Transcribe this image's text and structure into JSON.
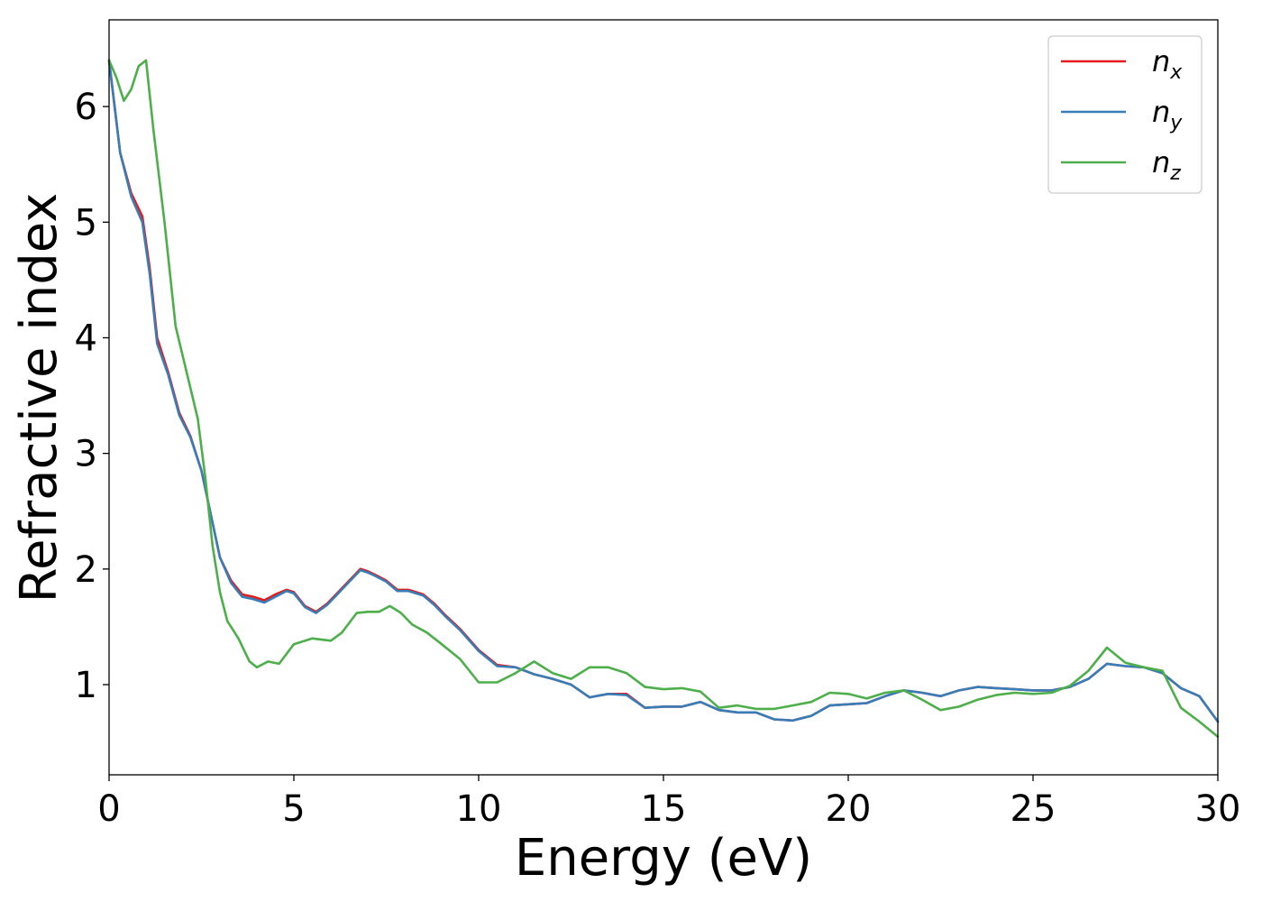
{
  "chart_data": {
    "type": "line",
    "xlabel": "Energy (eV)",
    "ylabel": "Refractive index",
    "xlim": [
      0,
      30
    ],
    "ylim": [
      0.22,
      6.75
    ],
    "xticks": [
      0,
      5,
      10,
      15,
      20,
      25,
      30
    ],
    "xtick_labels": [
      "0",
      "5",
      "10",
      "15",
      "20",
      "25",
      "30"
    ],
    "yticks": [
      1,
      2,
      3,
      4,
      5,
      6
    ],
    "ytick_labels": [
      "1",
      "2",
      "3",
      "4",
      "5",
      "6"
    ],
    "grid": false,
    "legend_position": "top-right",
    "series": [
      {
        "name": "n_x",
        "legend_base": "n",
        "legend_sub": "x",
        "color": "#e41a1c",
        "x": [
          0,
          0.3,
          0.6,
          0.9,
          1.1,
          1.3,
          1.6,
          1.9,
          2.2,
          2.5,
          2.8,
          3.0,
          3.3,
          3.6,
          3.9,
          4.2,
          4.5,
          4.8,
          5.0,
          5.3,
          5.6,
          5.9,
          6.2,
          6.5,
          6.8,
          7.0,
          7.2,
          7.5,
          7.8,
          8.1,
          8.5,
          8.8,
          9.1,
          9.5,
          10.0,
          10.5,
          11.0,
          11.5,
          12.0,
          12.5,
          13.0,
          13.5,
          14.0,
          14.5,
          15.0,
          15.5,
          16.0,
          16.5,
          17.0,
          17.5,
          18.0,
          18.5,
          19.0,
          19.5,
          20.0,
          20.5,
          21.0,
          21.5,
          22.0,
          22.5,
          23.0,
          23.5,
          24.0,
          24.5,
          25.0,
          25.5,
          26.0,
          26.5,
          27.0,
          27.5,
          28.0,
          28.5,
          29.0,
          29.5,
          30.0
        ],
        "y": [
          6.4,
          5.6,
          5.25,
          5.05,
          4.6,
          4.0,
          3.7,
          3.35,
          3.15,
          2.85,
          2.4,
          2.1,
          1.9,
          1.78,
          1.76,
          1.73,
          1.78,
          1.82,
          1.8,
          1.68,
          1.63,
          1.7,
          1.8,
          1.9,
          2.0,
          1.98,
          1.95,
          1.9,
          1.82,
          1.82,
          1.78,
          1.7,
          1.6,
          1.48,
          1.3,
          1.17,
          1.15,
          1.09,
          1.05,
          1.0,
          0.89,
          0.92,
          0.92,
          0.8,
          0.81,
          0.81,
          0.85,
          0.78,
          0.76,
          0.76,
          0.7,
          0.69,
          0.73,
          0.82,
          0.83,
          0.84,
          0.9,
          0.95,
          0.93,
          0.9,
          0.95,
          0.98,
          0.97,
          0.96,
          0.95,
          0.95,
          0.98,
          1.05,
          1.18,
          1.16,
          1.15,
          1.1,
          0.97,
          0.9,
          0.68
        ]
      },
      {
        "name": "n_y",
        "legend_base": "n",
        "legend_sub": "y",
        "color": "#377eb8",
        "x": [
          0,
          0.3,
          0.6,
          0.9,
          1.1,
          1.3,
          1.6,
          1.9,
          2.2,
          2.5,
          2.8,
          3.0,
          3.3,
          3.6,
          3.9,
          4.2,
          4.5,
          4.8,
          5.0,
          5.3,
          5.6,
          5.9,
          6.2,
          6.5,
          6.8,
          7.0,
          7.2,
          7.5,
          7.8,
          8.1,
          8.5,
          8.8,
          9.1,
          9.5,
          10.0,
          10.5,
          11.0,
          11.5,
          12.0,
          12.5,
          13.0,
          13.5,
          14.0,
          14.5,
          15.0,
          15.5,
          16.0,
          16.5,
          17.0,
          17.5,
          18.0,
          18.5,
          19.0,
          19.5,
          20.0,
          20.5,
          21.0,
          21.5,
          22.0,
          22.5,
          23.0,
          23.5,
          24.0,
          24.5,
          25.0,
          25.5,
          26.0,
          26.5,
          27.0,
          27.5,
          28.0,
          28.5,
          29.0,
          29.5,
          30.0
        ],
        "y": [
          6.4,
          5.6,
          5.22,
          5.0,
          4.55,
          3.95,
          3.68,
          3.33,
          3.14,
          2.85,
          2.4,
          2.1,
          1.88,
          1.76,
          1.74,
          1.71,
          1.76,
          1.81,
          1.79,
          1.67,
          1.62,
          1.69,
          1.79,
          1.89,
          1.99,
          1.97,
          1.94,
          1.89,
          1.81,
          1.81,
          1.77,
          1.69,
          1.59,
          1.47,
          1.29,
          1.16,
          1.15,
          1.09,
          1.05,
          1.0,
          0.89,
          0.92,
          0.91,
          0.8,
          0.81,
          0.81,
          0.85,
          0.78,
          0.76,
          0.76,
          0.7,
          0.69,
          0.73,
          0.82,
          0.83,
          0.84,
          0.9,
          0.95,
          0.93,
          0.9,
          0.95,
          0.98,
          0.97,
          0.96,
          0.95,
          0.95,
          0.98,
          1.05,
          1.18,
          1.16,
          1.15,
          1.1,
          0.97,
          0.9,
          0.68
        ]
      },
      {
        "name": "n_z",
        "legend_base": "n",
        "legend_sub": "z",
        "color": "#4daf4a",
        "x": [
          0,
          0.2,
          0.4,
          0.6,
          0.8,
          1.0,
          1.2,
          1.5,
          1.8,
          2.1,
          2.4,
          2.6,
          2.8,
          3.0,
          3.2,
          3.5,
          3.8,
          4.0,
          4.3,
          4.6,
          5.0,
          5.5,
          6.0,
          6.3,
          6.7,
          7.0,
          7.3,
          7.6,
          7.9,
          8.2,
          8.6,
          9.0,
          9.5,
          10.0,
          10.5,
          11.0,
          11.5,
          12.0,
          12.5,
          13.0,
          13.5,
          14.0,
          14.5,
          15.0,
          15.5,
          16.0,
          16.5,
          17.0,
          17.5,
          18.0,
          18.5,
          19.0,
          19.5,
          20.0,
          20.5,
          21.0,
          21.5,
          22.0,
          22.5,
          23.0,
          23.5,
          24.0,
          24.5,
          25.0,
          25.5,
          26.0,
          26.5,
          27.0,
          27.5,
          28.0,
          28.5,
          29.0,
          29.5,
          30.0
        ],
        "y": [
          6.4,
          6.25,
          6.05,
          6.15,
          6.35,
          6.4,
          5.8,
          5.0,
          4.1,
          3.7,
          3.3,
          2.8,
          2.2,
          1.8,
          1.55,
          1.4,
          1.2,
          1.15,
          1.2,
          1.18,
          1.35,
          1.4,
          1.38,
          1.45,
          1.62,
          1.63,
          1.63,
          1.68,
          1.62,
          1.52,
          1.45,
          1.35,
          1.22,
          1.02,
          1.02,
          1.1,
          1.2,
          1.1,
          1.05,
          1.15,
          1.15,
          1.1,
          0.98,
          0.96,
          0.97,
          0.94,
          0.8,
          0.82,
          0.79,
          0.79,
          0.82,
          0.85,
          0.93,
          0.92,
          0.88,
          0.93,
          0.95,
          0.87,
          0.78,
          0.81,
          0.87,
          0.91,
          0.93,
          0.92,
          0.93,
          0.99,
          1.12,
          1.32,
          1.19,
          1.15,
          1.12,
          0.8,
          0.68,
          0.55
        ]
      }
    ]
  }
}
